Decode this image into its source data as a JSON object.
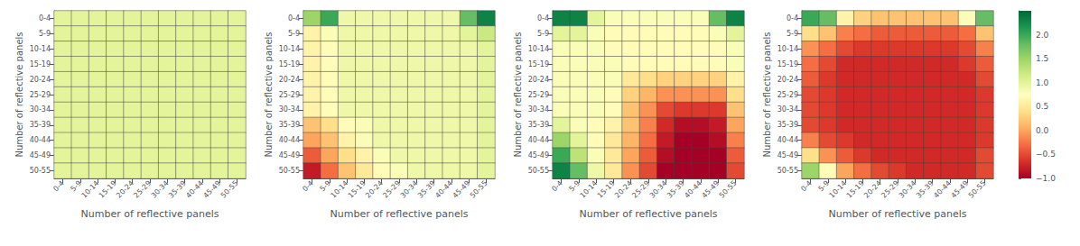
{
  "chart_data": {
    "type": "heatmap",
    "categories": [
      "0-4",
      "5-9",
      "10-14",
      "15-19",
      "20-24",
      "25-29",
      "30-34",
      "35-39",
      "40-44",
      "45-49",
      "50-55"
    ],
    "xlabel": "Number of reflective panels",
    "ylabel": "Number of reflective panels",
    "grid": true,
    "colorbar": {
      "range": [
        -1.0,
        2.5
      ],
      "ticks": [
        {
          "value": -1,
          "label": "−1.0"
        },
        {
          "value": -0.5,
          "label": "−0.5"
        },
        {
          "value": 0,
          "label": "0.0"
        },
        {
          "value": 0.5,
          "label": "0.5"
        },
        {
          "value": 1,
          "label": "1.0"
        },
        {
          "value": 1.5,
          "label": "1.5"
        },
        {
          "value": 2,
          "label": "2.0"
        }
      ],
      "colors": [
        "#a50026",
        "#d73027",
        "#f46d43",
        "#fdae61",
        "#fee08b",
        "#ffffbf",
        "#d9ef8b",
        "#a6d96a",
        "#66bd63",
        "#1a9850",
        "#006837"
      ]
    },
    "heatmaps": [
      [
        [
          1.0,
          1.0,
          1.0,
          1.0,
          1.0,
          1.0,
          1.0,
          1.0,
          1.0,
          1.0,
          1.0
        ],
        [
          1.0,
          1.0,
          1.0,
          1.0,
          1.0,
          1.0,
          1.0,
          1.0,
          1.0,
          1.0,
          1.0
        ],
        [
          1.0,
          1.0,
          1.0,
          1.0,
          1.0,
          1.0,
          1.0,
          1.0,
          1.0,
          1.0,
          1.0
        ],
        [
          1.0,
          1.0,
          1.0,
          1.0,
          1.0,
          1.0,
          1.0,
          1.0,
          1.0,
          1.0,
          1.0
        ],
        [
          1.0,
          1.0,
          1.0,
          1.0,
          1.0,
          1.0,
          1.0,
          1.0,
          1.0,
          1.0,
          1.0
        ],
        [
          1.0,
          1.0,
          1.0,
          1.0,
          1.0,
          1.0,
          1.0,
          1.0,
          1.0,
          1.0,
          1.0
        ],
        [
          1.0,
          1.0,
          1.0,
          1.0,
          1.0,
          1.0,
          1.0,
          1.0,
          1.0,
          1.0,
          1.0
        ],
        [
          1.0,
          1.0,
          1.0,
          1.0,
          1.0,
          1.0,
          1.0,
          1.0,
          1.0,
          1.0,
          1.0
        ],
        [
          1.0,
          1.0,
          1.0,
          1.0,
          1.0,
          1.0,
          1.0,
          1.0,
          1.0,
          1.0,
          1.0
        ],
        [
          1.0,
          1.0,
          1.0,
          1.0,
          1.0,
          1.0,
          1.0,
          1.0,
          1.0,
          1.0,
          1.0
        ],
        [
          1.0,
          1.0,
          1.0,
          1.0,
          1.0,
          1.0,
          1.0,
          1.0,
          1.0,
          1.0,
          1.0
        ]
      ],
      [
        [
          1.5,
          2.0,
          0.9,
          0.9,
          0.9,
          0.9,
          0.9,
          0.9,
          0.9,
          1.8,
          2.3
        ],
        [
          0.6,
          0.8,
          0.9,
          0.9,
          0.9,
          0.9,
          0.9,
          0.9,
          0.9,
          1.0,
          1.2
        ],
        [
          0.6,
          0.7,
          0.9,
          0.9,
          0.9,
          0.9,
          0.9,
          0.9,
          0.9,
          0.9,
          1.0
        ],
        [
          0.6,
          0.7,
          0.9,
          0.9,
          0.9,
          0.9,
          0.9,
          0.9,
          0.9,
          0.9,
          1.0
        ],
        [
          0.6,
          0.7,
          0.9,
          0.9,
          0.9,
          0.9,
          0.9,
          0.9,
          0.9,
          0.9,
          1.0
        ],
        [
          0.6,
          0.7,
          0.9,
          0.9,
          0.9,
          0.9,
          0.9,
          0.9,
          0.9,
          0.9,
          1.0
        ],
        [
          0.6,
          0.7,
          0.9,
          0.9,
          0.9,
          0.9,
          0.9,
          0.9,
          0.9,
          0.9,
          1.0
        ],
        [
          0.2,
          0.4,
          0.7,
          0.8,
          0.9,
          0.9,
          0.9,
          0.9,
          0.9,
          0.9,
          1.0
        ],
        [
          0.0,
          0.2,
          0.6,
          0.8,
          0.9,
          0.9,
          0.9,
          0.9,
          0.9,
          0.9,
          1.0
        ],
        [
          -0.4,
          0.0,
          0.4,
          0.6,
          0.8,
          0.9,
          0.9,
          0.9,
          0.9,
          0.9,
          1.0
        ],
        [
          -0.8,
          -0.3,
          0.2,
          0.5,
          0.7,
          0.8,
          0.9,
          0.9,
          0.9,
          0.9,
          1.0
        ]
      ],
      [
        [
          2.3,
          2.3,
          1.0,
          0.8,
          0.8,
          0.8,
          0.8,
          0.8,
          0.8,
          1.8,
          2.3
        ],
        [
          1.0,
          1.0,
          0.8,
          0.7,
          0.7,
          0.7,
          0.7,
          0.7,
          0.7,
          0.8,
          1.0
        ],
        [
          0.8,
          0.8,
          0.8,
          0.7,
          0.7,
          0.7,
          0.7,
          0.7,
          0.7,
          0.7,
          0.8
        ],
        [
          0.8,
          0.8,
          0.8,
          0.8,
          0.7,
          0.7,
          0.7,
          0.7,
          0.7,
          0.7,
          0.8
        ],
        [
          0.8,
          0.8,
          0.8,
          0.8,
          0.5,
          0.4,
          0.3,
          0.3,
          0.3,
          0.3,
          0.6
        ],
        [
          0.8,
          0.8,
          0.8,
          0.7,
          0.3,
          0.1,
          -0.1,
          -0.1,
          -0.1,
          -0.1,
          0.4
        ],
        [
          0.8,
          0.8,
          0.8,
          0.7,
          0.2,
          -0.1,
          -0.5,
          -0.6,
          -0.6,
          -0.6,
          0.2
        ],
        [
          1.0,
          0.8,
          0.7,
          0.6,
          0.2,
          -0.2,
          -0.7,
          -0.9,
          -0.9,
          -0.8,
          0.0
        ],
        [
          1.5,
          1.0,
          0.7,
          0.5,
          0.1,
          -0.3,
          -0.8,
          -1.0,
          -1.0,
          -0.9,
          -0.2
        ],
        [
          2.0,
          1.3,
          0.8,
          0.5,
          0.0,
          -0.4,
          -0.9,
          -1.0,
          -1.0,
          -1.0,
          -0.4
        ],
        [
          2.3,
          1.8,
          0.9,
          0.5,
          -0.1,
          -0.5,
          -1.0,
          -1.0,
          -1.0,
          -1.0,
          -0.5
        ]
      ],
      [
        [
          2.0,
          1.8,
          0.6,
          0.3,
          0.2,
          0.2,
          0.2,
          0.2,
          0.2,
          0.8,
          1.8
        ],
        [
          0.4,
          0.2,
          -0.2,
          -0.3,
          -0.4,
          -0.4,
          -0.4,
          -0.4,
          -0.4,
          -0.3,
          0.2
        ],
        [
          -0.1,
          -0.3,
          -0.5,
          -0.6,
          -0.6,
          -0.6,
          -0.6,
          -0.6,
          -0.6,
          -0.5,
          -0.2
        ],
        [
          -0.3,
          -0.5,
          -0.7,
          -0.7,
          -0.7,
          -0.7,
          -0.7,
          -0.7,
          -0.7,
          -0.6,
          -0.4
        ],
        [
          -0.4,
          -0.6,
          -0.7,
          -0.7,
          -0.7,
          -0.7,
          -0.7,
          -0.7,
          -0.7,
          -0.7,
          -0.5
        ],
        [
          -0.5,
          -0.6,
          -0.7,
          -0.7,
          -0.7,
          -0.7,
          -0.7,
          -0.7,
          -0.7,
          -0.7,
          -0.6
        ],
        [
          -0.5,
          -0.6,
          -0.7,
          -0.7,
          -0.7,
          -0.7,
          -0.7,
          -0.7,
          -0.7,
          -0.7,
          -0.6
        ],
        [
          -0.5,
          -0.6,
          -0.7,
          -0.7,
          -0.7,
          -0.7,
          -0.7,
          -0.7,
          -0.7,
          -0.7,
          -0.6
        ],
        [
          -0.2,
          -0.5,
          -0.6,
          -0.7,
          -0.7,
          -0.7,
          -0.7,
          -0.7,
          -0.7,
          -0.7,
          -0.6
        ],
        [
          0.4,
          -0.1,
          -0.4,
          -0.6,
          -0.7,
          -0.7,
          -0.7,
          -0.7,
          -0.7,
          -0.7,
          -0.5
        ],
        [
          1.5,
          0.7,
          0.0,
          -0.3,
          -0.5,
          -0.6,
          -0.7,
          -0.7,
          -0.7,
          -0.7,
          -0.5
        ]
      ]
    ]
  }
}
